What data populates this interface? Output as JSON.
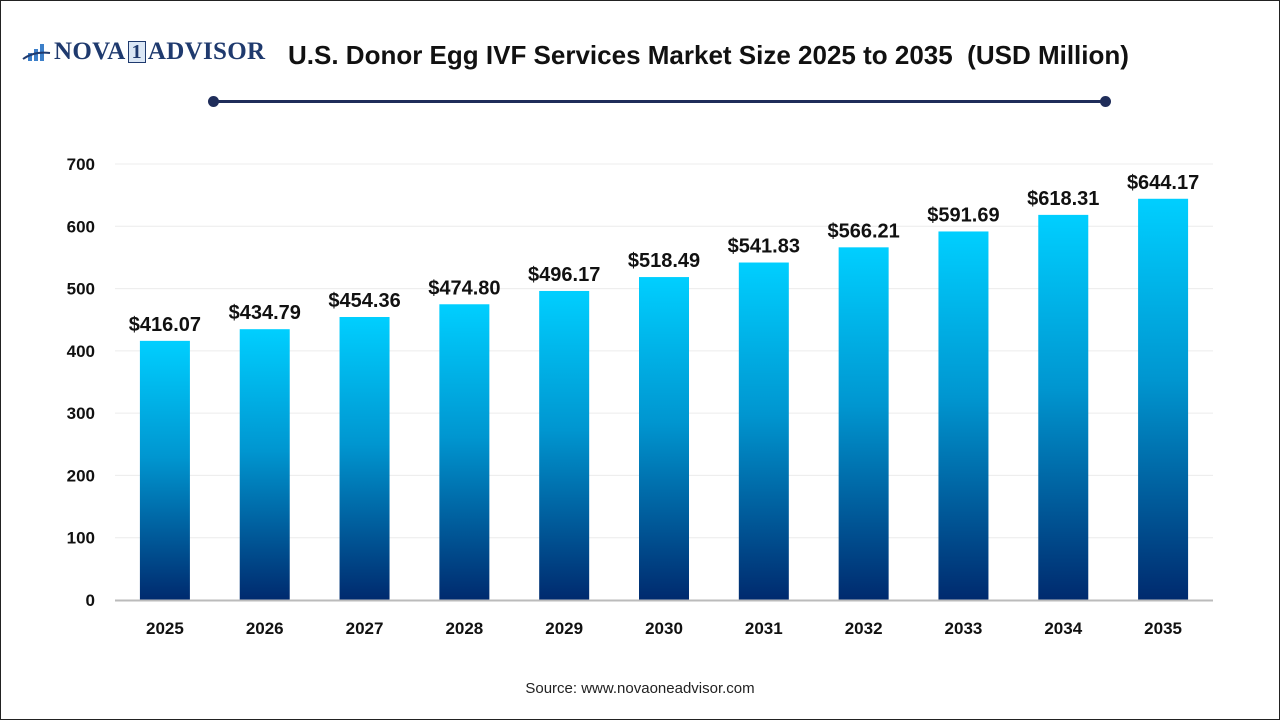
{
  "header": {
    "logo_text": "NOVA 1 ADVISOR",
    "title": "U.S. Donor Egg IVF Services Market Size 2025 to 2035  (USD Million)"
  },
  "source": "Source: www.novaoneadvisor.com",
  "colors": {
    "bar_top": "#00cfff",
    "bar_bottom": "#002a6e",
    "divider": "#1f2d5a"
  },
  "chart_data": {
    "type": "bar",
    "title": "U.S. Donor Egg IVF Services Market Size 2025 to 2035  (USD Million)",
    "categories": [
      "2025",
      "2026",
      "2027",
      "2028",
      "2029",
      "2030",
      "2031",
      "2032",
      "2033",
      "2034",
      "2035"
    ],
    "values": [
      416.07,
      434.79,
      454.36,
      474.8,
      496.17,
      518.49,
      541.83,
      566.21,
      591.69,
      618.31,
      644.17
    ],
    "data_labels": [
      "$416.07",
      "$434.79",
      "$454.36",
      "$474.80",
      "$496.17",
      "$518.49",
      "$541.83",
      "$566.21",
      "$591.69",
      "$618.31",
      "$644.17"
    ],
    "yticks": [
      0,
      100,
      200,
      300,
      400,
      500,
      600,
      700
    ],
    "ylim": [
      0,
      700
    ],
    "xlabel": "",
    "ylabel": "",
    "grid": true,
    "legend": "none"
  }
}
